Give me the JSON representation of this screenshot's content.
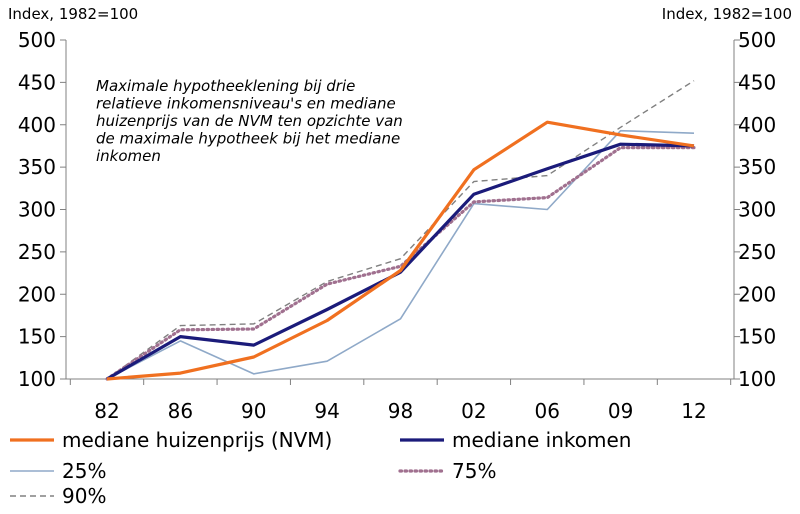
{
  "chart_data": {
    "type": "line",
    "left_unit_label": "Index, 1982=100",
    "right_unit_label": "Index, 1982=100",
    "annotation": [
      "Maximale hypotheeklening bij drie",
      "relatieve inkomensniveau's en mediane",
      "huizenprijs van de NVM ten opzichte van",
      "de maximale hypotheek bij het mediane",
      "inkomen"
    ],
    "categories": [
      "82",
      "86",
      "90",
      "94",
      "98",
      "02",
      "06",
      "09",
      "12"
    ],
    "ylim": [
      100,
      500
    ],
    "yticks": [
      "100",
      "150",
      "200",
      "250",
      "300",
      "350",
      "400",
      "450",
      "500"
    ],
    "grid": false,
    "series": [
      {
        "name": "mediane huizenprijs (NVM)",
        "color": "#f07020",
        "style": "solid-thick",
        "values": [
          100,
          107,
          126,
          169,
          228,
          347,
          403,
          388,
          375
        ]
      },
      {
        "name": "mediane inkomen",
        "color": "#1b1b7a",
        "style": "solid-thick",
        "values": [
          100,
          150,
          140,
          182,
          226,
          318,
          348,
          377,
          375
        ]
      },
      {
        "name": "25%",
        "color": "#8fa9c8",
        "style": "solid-thin",
        "values": [
          100,
          145,
          106,
          121,
          171,
          307,
          300,
          393,
          390
        ]
      },
      {
        "name": "75%",
        "color": "#a0708f",
        "style": "dotted",
        "values": [
          100,
          158,
          159,
          212,
          233,
          309,
          314,
          373,
          373
        ]
      },
      {
        "name": "90%",
        "color": "#808080",
        "style": "dashed",
        "values": [
          100,
          163,
          165,
          215,
          242,
          333,
          340,
          397,
          452
        ]
      }
    ]
  }
}
